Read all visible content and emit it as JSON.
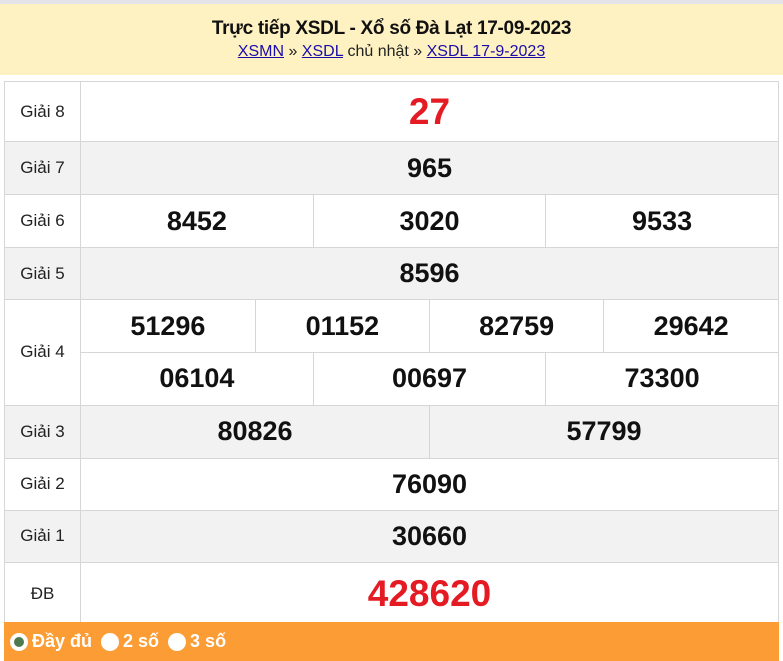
{
  "header": {
    "title": "Trực tiếp XSDL - Xổ số Đà Lạt 17-09-2023",
    "crumb": {
      "link1": "XSMN",
      "sep1": " » ",
      "link2": "XSDL",
      "text": " chủ nhật » ",
      "link3": "XSDL 17-9-2023"
    }
  },
  "prizes": {
    "g8": {
      "label": "Giải 8",
      "nums": [
        "27"
      ]
    },
    "g7": {
      "label": "Giải 7",
      "nums": [
        "965"
      ]
    },
    "g6": {
      "label": "Giải 6",
      "nums": [
        "8452",
        "3020",
        "9533"
      ]
    },
    "g5": {
      "label": "Giải 5",
      "nums": [
        "8596"
      ]
    },
    "g4": {
      "label": "Giải 4",
      "nums": [
        "51296",
        "01152",
        "82759",
        "29642",
        "06104",
        "00697",
        "73300"
      ]
    },
    "g3": {
      "label": "Giải 3",
      "nums": [
        "80826",
        "57799"
      ]
    },
    "g2": {
      "label": "Giải 2",
      "nums": [
        "76090"
      ]
    },
    "g1": {
      "label": "Giải 1",
      "nums": [
        "30660"
      ]
    },
    "db": {
      "label": "ĐB",
      "nums": [
        "428620"
      ]
    }
  },
  "footer": {
    "options": [
      {
        "label": "Đầy đủ",
        "selected": true
      },
      {
        "label": "2 số",
        "selected": false
      },
      {
        "label": "3 số",
        "selected": false
      }
    ]
  },
  "colors": {
    "header_bg": "#fff2c2",
    "footer_bg": "#fb9c34",
    "highlight": "#e41b23"
  }
}
